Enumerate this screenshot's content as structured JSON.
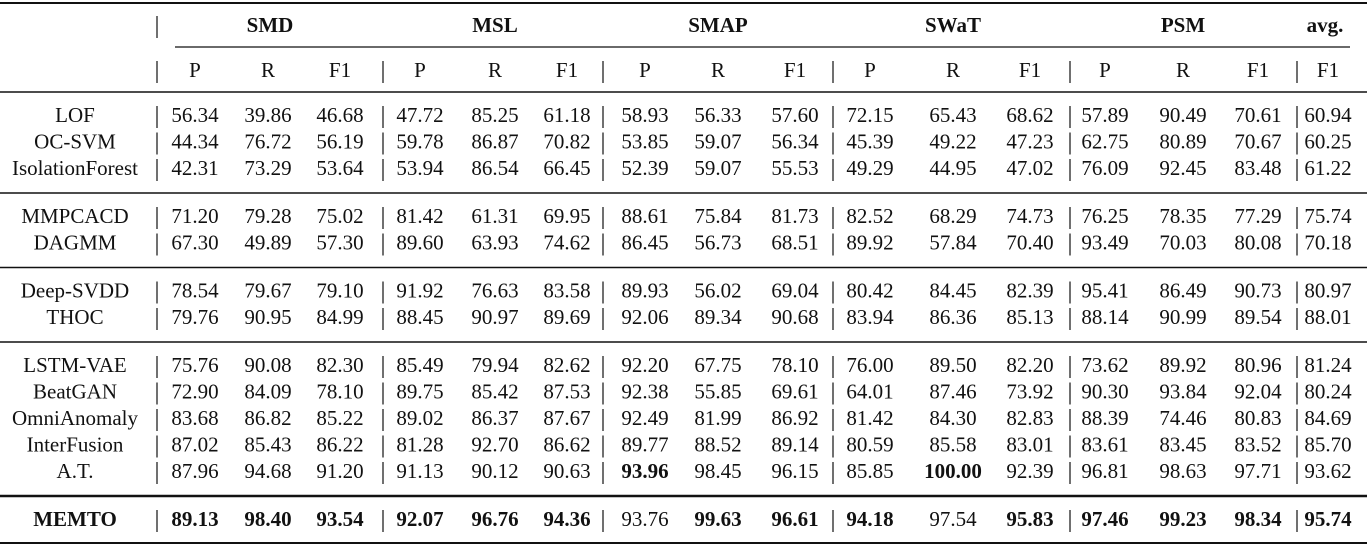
{
  "table": {
    "groups": [
      "SMD",
      "MSL",
      "SMAP",
      "SWaT",
      "PSM",
      "avg."
    ],
    "columns": [
      "P",
      "R",
      "F1",
      "P",
      "R",
      "F1",
      "P",
      "R",
      "F1",
      "P",
      "R",
      "F1",
      "P",
      "R",
      "F1",
      "F1"
    ],
    "sections": [
      {
        "rows": [
          {
            "method": "LOF",
            "values": [
              "56.34",
              "39.86",
              "46.68",
              "47.72",
              "85.25",
              "61.18",
              "58.93",
              "56.33",
              "57.60",
              "72.15",
              "65.43",
              "68.62",
              "57.89",
              "90.49",
              "70.61",
              "60.94"
            ]
          },
          {
            "method": "OC-SVM",
            "values": [
              "44.34",
              "76.72",
              "56.19",
              "59.78",
              "86.87",
              "70.82",
              "53.85",
              "59.07",
              "56.34",
              "45.39",
              "49.22",
              "47.23",
              "62.75",
              "80.89",
              "70.67",
              "60.25"
            ]
          },
          {
            "method": "IsolationForest",
            "values": [
              "42.31",
              "73.29",
              "53.64",
              "53.94",
              "86.54",
              "66.45",
              "52.39",
              "59.07",
              "55.53",
              "49.29",
              "44.95",
              "47.02",
              "76.09",
              "92.45",
              "83.48",
              "61.22"
            ]
          }
        ]
      },
      {
        "rows": [
          {
            "method": "MMPCACD",
            "values": [
              "71.20",
              "79.28",
              "75.02",
              "81.42",
              "61.31",
              "69.95",
              "88.61",
              "75.84",
              "81.73",
              "82.52",
              "68.29",
              "74.73",
              "76.25",
              "78.35",
              "77.29",
              "75.74"
            ]
          },
          {
            "method": "DAGMM",
            "values": [
              "67.30",
              "49.89",
              "57.30",
              "89.60",
              "63.93",
              "74.62",
              "86.45",
              "56.73",
              "68.51",
              "89.92",
              "57.84",
              "70.40",
              "93.49",
              "70.03",
              "80.08",
              "70.18"
            ]
          }
        ]
      },
      {
        "rows": [
          {
            "method": "Deep-SVDD",
            "values": [
              "78.54",
              "79.67",
              "79.10",
              "91.92",
              "76.63",
              "83.58",
              "89.93",
              "56.02",
              "69.04",
              "80.42",
              "84.45",
              "82.39",
              "95.41",
              "86.49",
              "90.73",
              "80.97"
            ]
          },
          {
            "method": "THOC",
            "values": [
              "79.76",
              "90.95",
              "84.99",
              "88.45",
              "90.97",
              "89.69",
              "92.06",
              "89.34",
              "90.68",
              "83.94",
              "86.36",
              "85.13",
              "88.14",
              "90.99",
              "89.54",
              "88.01"
            ]
          }
        ]
      },
      {
        "rows": [
          {
            "method": "LSTM-VAE",
            "values": [
              "75.76",
              "90.08",
              "82.30",
              "85.49",
              "79.94",
              "82.62",
              "92.20",
              "67.75",
              "78.10",
              "76.00",
              "89.50",
              "82.20",
              "73.62",
              "89.92",
              "80.96",
              "81.24"
            ]
          },
          {
            "method": "BeatGAN",
            "values": [
              "72.90",
              "84.09",
              "78.10",
              "89.75",
              "85.42",
              "87.53",
              "92.38",
              "55.85",
              "69.61",
              "64.01",
              "87.46",
              "73.92",
              "90.30",
              "93.84",
              "92.04",
              "80.24"
            ]
          },
          {
            "method": "OmniAnomaly",
            "values": [
              "83.68",
              "86.82",
              "85.22",
              "89.02",
              "86.37",
              "87.67",
              "92.49",
              "81.99",
              "86.92",
              "81.42",
              "84.30",
              "82.83",
              "88.39",
              "74.46",
              "80.83",
              "84.69"
            ]
          },
          {
            "method": "InterFusion",
            "values": [
              "87.02",
              "85.43",
              "86.22",
              "81.28",
              "92.70",
              "86.62",
              "89.77",
              "88.52",
              "89.14",
              "80.59",
              "85.58",
              "83.01",
              "83.61",
              "83.45",
              "83.52",
              "85.70"
            ]
          },
          {
            "method": "A.T.",
            "values": [
              "87.96",
              "94.68",
              "91.20",
              "91.13",
              "90.12",
              "90.63",
              "93.96",
              "98.45",
              "96.15",
              "85.85",
              "100.00",
              "92.39",
              "96.81",
              "98.63",
              "97.71",
              "93.62"
            ],
            "bold_values": [
              6,
              10
            ]
          }
        ]
      },
      {
        "rows": [
          {
            "method": "MEMTO",
            "bold_method": true,
            "values": [
              "89.13",
              "98.40",
              "93.54",
              "92.07",
              "96.76",
              "94.36",
              "93.76",
              "99.63",
              "96.61",
              "94.18",
              "97.54",
              "95.83",
              "97.46",
              "99.23",
              "98.34",
              "95.74"
            ],
            "bold_values": [
              0,
              1,
              2,
              3,
              4,
              5,
              7,
              8,
              9,
              11,
              12,
              13,
              14,
              15
            ]
          }
        ]
      }
    ]
  }
}
